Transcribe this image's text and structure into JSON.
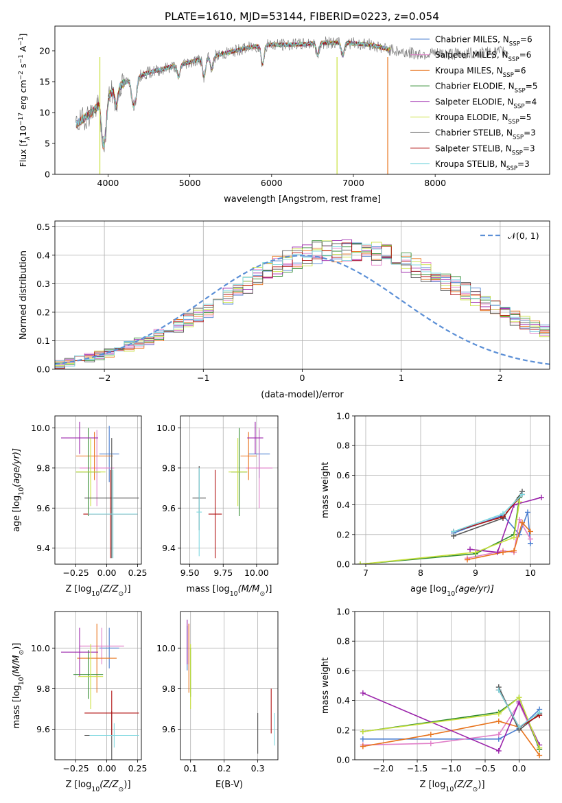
{
  "title": "PLATE=1610, MJD=53144, FIBERID=0223, z=0.054",
  "colors": {
    "chabrier_miles": "#4a7fd0",
    "salpeter_miles": "#e07ec8",
    "kroupa_miles": "#e8731c",
    "chabrier_elodie": "#2f8a2f",
    "salpeter_elodie": "#9a22aa",
    "kroupa_elodie": "#c8e03c",
    "chabrier_stelib": "#555555",
    "salpeter_stelib": "#b01010",
    "kroupa_stelib": "#7fd8e0",
    "normal_curve": "#5b8fd6",
    "grid": "#b0b0b0"
  },
  "chart_data": [
    {
      "id": "spectrum",
      "type": "line",
      "xlabel": "wavelength [Angstrom, rest frame]",
      "ylabel_main": "Flux [f",
      "ylabel_lambda_sub": "λ",
      "ylabel_mid": "10",
      "ylabel_exp": "−17",
      "ylabel_tail": " erg cm",
      "ylabel_exp2": "−2",
      "ylabel_tail2": " s",
      "ylabel_exp3": "−1",
      "ylabel_tail3": " A",
      "ylabel_exp4": "−1",
      "ylabel_close": "]",
      "xlim": [
        3350,
        9400
      ],
      "ylim": [
        0,
        24
      ],
      "xticks": [
        4000,
        5000,
        6000,
        7000,
        8000
      ],
      "yticks": [
        0,
        5,
        10,
        15,
        20
      ],
      "legend_position": "upper-right",
      "legend": [
        {
          "label": "Chabrier MILES, N",
          "sub": "SSP",
          "eq": "=6",
          "color": "#4a7fd0"
        },
        {
          "label": "Salpeter MILES, N",
          "sub": "SSP",
          "eq": "=6",
          "color": "#e07ec8"
        },
        {
          "label": "Kroupa MILES, N",
          "sub": "SSP",
          "eq": "=6",
          "color": "#e8731c"
        },
        {
          "label": "Chabrier ELODIE, N",
          "sub": "SSP",
          "eq": "=5",
          "color": "#2f8a2f"
        },
        {
          "label": "Salpeter ELODIE, N",
          "sub": "SSP",
          "eq": "=4",
          "color": "#9a22aa"
        },
        {
          "label": "Kroupa ELODIE, N",
          "sub": "SSP",
          "eq": "=5",
          "color": "#c8e03c"
        },
        {
          "label": "Chabrier STELIB, N",
          "sub": "SSP",
          "eq": "=3",
          "color": "#555555"
        },
        {
          "label": "Salpeter STELIB, N",
          "sub": "SSP",
          "eq": "=3",
          "color": "#b01010"
        },
        {
          "label": "Kroupa STELIB, N",
          "sub": "SSP",
          "eq": "=3",
          "color": "#7fd8e0"
        }
      ],
      "continuum_x": [
        3600,
        3800,
        3950,
        4100,
        4300,
        4500,
        4800,
        5100,
        5400,
        5700,
        6000,
        6300,
        6600,
        6900,
        7200,
        7500,
        7800,
        8100,
        8400,
        8700,
        8900
      ],
      "continuum_y": [
        8,
        10,
        12,
        14,
        15.5,
        16.5,
        17.5,
        18.5,
        19.5,
        20.5,
        21,
        21,
        21.3,
        21.3,
        21,
        20,
        19.5,
        19.5,
        19.6,
        19.7,
        20
      ],
      "absorption_features": [
        {
          "x": 3934,
          "depth": 6
        },
        {
          "x": 3968,
          "depth": 5
        },
        {
          "x": 4102,
          "depth": 3
        },
        {
          "x": 4304,
          "depth": 4
        },
        {
          "x": 4341,
          "depth": 3
        },
        {
          "x": 4861,
          "depth": 2
        },
        {
          "x": 5175,
          "depth": 3
        },
        {
          "x": 5270,
          "depth": 2
        },
        {
          "x": 5890,
          "depth": 3
        },
        {
          "x": 6563,
          "depth": 2
        },
        {
          "x": 6870,
          "depth": 2
        }
      ],
      "model_dropouts": [
        {
          "x": 3900,
          "color": "#c8e03c"
        },
        {
          "x": 6800,
          "color": "#c8e03c"
        },
        {
          "x": 7420,
          "color": "#e8731c"
        }
      ]
    },
    {
      "id": "residual-histogram",
      "type": "bar",
      "xlabel": "(data-model)/error",
      "ylabel": "Normed distribution",
      "xlim": [
        -2.5,
        2.5
      ],
      "ylim": [
        0,
        0.52
      ],
      "xticks": [
        -2,
        -1,
        0,
        1,
        2
      ],
      "xtick_labels": [
        "−2",
        "−1",
        "0",
        "1",
        "2"
      ],
      "yticks": [
        0.0,
        0.1,
        0.2,
        0.3,
        0.4,
        0.5
      ],
      "legend_position": "upper-right",
      "legend_label": "𝒩(0, 1)",
      "bin_width": 0.1,
      "bins_start": -2.5,
      "base_values": [
        0.018,
        0.025,
        0.033,
        0.042,
        0.05,
        0.058,
        0.066,
        0.078,
        0.09,
        0.105,
        0.12,
        0.136,
        0.152,
        0.17,
        0.19,
        0.21,
        0.232,
        0.255,
        0.278,
        0.3,
        0.322,
        0.343,
        0.362,
        0.378,
        0.392,
        0.402,
        0.41,
        0.414,
        0.416,
        0.415,
        0.413,
        0.41,
        0.404,
        0.396,
        0.385,
        0.372,
        0.358,
        0.343,
        0.327,
        0.31,
        0.292,
        0.273,
        0.254,
        0.235,
        0.216,
        0.198,
        0.18,
        0.163,
        0.147,
        0.132,
        0.118,
        0.105,
        0.093,
        0.082,
        0.072,
        0.063,
        0.055,
        0.048,
        0.041,
        0.035,
        0.03,
        0.026,
        0.023,
        0.02,
        0.018,
        0.016,
        0.015,
        0.014,
        0.013,
        0.012
      ],
      "series_offsets": [
        {
          "color": "#4a7fd0",
          "seed": 1
        },
        {
          "color": "#e07ec8",
          "seed": 2
        },
        {
          "color": "#e8731c",
          "seed": 3
        },
        {
          "color": "#2f8a2f",
          "seed": 4
        },
        {
          "color": "#9a22aa",
          "seed": 5
        },
        {
          "color": "#c8e03c",
          "seed": 6
        },
        {
          "color": "#555555",
          "seed": 7
        },
        {
          "color": "#b01010",
          "seed": 8
        },
        {
          "color": "#7fd8e0",
          "seed": 9
        }
      ]
    },
    {
      "id": "age-vs-Z",
      "type": "scatter",
      "xlabel": "Z [log",
      "xlabel_sub": "10",
      "xlabel_tail": "(Z/Z",
      "xlabel_sub2": "⊙",
      "xlabel_close": ")]",
      "ylabel": "age  [log",
      "ylabel_sub": "10",
      "ylabel_tail": "(age/yr)]",
      "xlim": [
        -0.42,
        0.28
      ],
      "ylim": [
        9.32,
        10.06
      ],
      "xticks": [
        -0.25,
        0.0,
        0.25
      ],
      "xtick_labels": [
        "−0.25",
        "0.00",
        "0.25"
      ],
      "yticks": [
        9.4,
        9.6,
        9.8,
        10.0
      ],
      "points": [
        {
          "x": 0.02,
          "y": 9.87,
          "xerr": 0.08,
          "yerr": 0.14,
          "color": "#4a7fd0"
        },
        {
          "x": -0.08,
          "y": 9.8,
          "xerr": 0.14,
          "yerr": 0.19,
          "color": "#e07ec8"
        },
        {
          "x": -0.1,
          "y": 9.86,
          "xerr": 0.15,
          "yerr": 0.12,
          "color": "#e8731c"
        },
        {
          "x": -0.15,
          "y": 9.78,
          "xerr": 0.1,
          "yerr": 0.22,
          "color": "#2f8a2f"
        },
        {
          "x": -0.22,
          "y": 9.95,
          "xerr": 0.15,
          "yerr": 0.08,
          "color": "#9a22aa"
        },
        {
          "x": -0.13,
          "y": 9.78,
          "xerr": 0.12,
          "yerr": 0.17,
          "color": "#c8e03c"
        },
        {
          "x": 0.04,
          "y": 9.65,
          "xerr": 0.22,
          "yerr": 0.3,
          "color": "#555555"
        },
        {
          "x": 0.03,
          "y": 9.57,
          "xerr": 0.22,
          "yerr": 0.22,
          "color": "#b01010"
        },
        {
          "x": 0.05,
          "y": 9.57,
          "xerr": 0.2,
          "yerr": 0.22,
          "color": "#7fd8e0"
        }
      ]
    },
    {
      "id": "age-vs-mass",
      "type": "scatter",
      "xlabel": "mass [log",
      "xlabel_sub": "10",
      "xlabel_tail": "(M/M",
      "xlabel_sub2": "⊙",
      "xlabel_close": ")]",
      "xlim": [
        9.43,
        10.16
      ],
      "ylim": [
        9.32,
        10.06
      ],
      "xticks": [
        9.5,
        9.75,
        10.0
      ],
      "xtick_labels": [
        "9.50",
        "9.75",
        "10.00"
      ],
      "yticks": [
        9.4,
        9.6,
        9.8,
        10.0
      ],
      "points": [
        {
          "x": 10.02,
          "y": 9.87,
          "xerr": 0.08,
          "yerr": 0.12,
          "color": "#4a7fd0"
        },
        {
          "x": 10.02,
          "y": 9.8,
          "xerr": 0.1,
          "yerr": 0.2,
          "color": "#e07ec8"
        },
        {
          "x": 9.94,
          "y": 9.86,
          "xerr": 0.06,
          "yerr": 0.12,
          "color": "#e8731c"
        },
        {
          "x": 9.87,
          "y": 9.78,
          "xerr": 0.06,
          "yerr": 0.22,
          "color": "#2f8a2f"
        },
        {
          "x": 9.99,
          "y": 9.95,
          "xerr": 0.06,
          "yerr": 0.08,
          "color": "#9a22aa"
        },
        {
          "x": 9.86,
          "y": 9.78,
          "xerr": 0.07,
          "yerr": 0.17,
          "color": "#c8e03c"
        },
        {
          "x": 9.57,
          "y": 9.65,
          "xerr": 0.05,
          "yerr": 0.16,
          "color": "#555555"
        },
        {
          "x": 9.69,
          "y": 9.57,
          "xerr": 0.05,
          "yerr": 0.22,
          "color": "#b01010"
        },
        {
          "x": 9.57,
          "y": 9.58,
          "xerr": 0.02,
          "yerr": 0.22,
          "color": "#7fd8e0"
        }
      ]
    },
    {
      "id": "weight-vs-age",
      "type": "line",
      "xlabel": "age  [log",
      "xlabel_sub": "10",
      "xlabel_tail": "(age/yr)]",
      "ylabel": "mass weight",
      "xlim": [
        6.8,
        10.35
      ],
      "ylim": [
        0,
        1.0
      ],
      "xticks": [
        7,
        8,
        9,
        10
      ],
      "yticks": [
        0.0,
        0.2,
        0.4,
        0.6,
        0.8,
        1.0
      ],
      "series": [
        {
          "color": "#4a7fd0",
          "x": [
            8.6,
            9.5,
            9.8,
            9.95,
            10.0
          ],
          "y": [
            0.21,
            0.33,
            0.2,
            0.35,
            0.14
          ]
        },
        {
          "color": "#e07ec8",
          "x": [
            8.85,
            9.5,
            9.7,
            9.8,
            10.0
          ],
          "y": [
            0.04,
            0.09,
            0.08,
            0.3,
            0.17
          ]
        },
        {
          "color": "#e8731c",
          "x": [
            8.85,
            9.5,
            9.7,
            9.85,
            10.0
          ],
          "y": [
            0.03,
            0.08,
            0.09,
            0.28,
            0.22
          ]
        },
        {
          "color": "#2f8a2f",
          "x": [
            6.9,
            9.0,
            9.7,
            9.8
          ],
          "y": [
            0.0,
            0.07,
            0.2,
            0.45
          ]
        },
        {
          "color": "#9a22aa",
          "x": [
            8.9,
            9.4,
            9.7,
            10.2
          ],
          "y": [
            0.1,
            0.08,
            0.4,
            0.45
          ]
        },
        {
          "color": "#c8e03c",
          "x": [
            6.9,
            9.0,
            9.7,
            9.8
          ],
          "y": [
            0.0,
            0.08,
            0.18,
            0.42
          ]
        },
        {
          "color": "#555555",
          "x": [
            8.6,
            9.5,
            9.85
          ],
          "y": [
            0.19,
            0.31,
            0.49
          ]
        },
        {
          "color": "#b01010",
          "x": [
            8.6,
            9.5,
            9.85
          ],
          "y": [
            0.22,
            0.32,
            0.47
          ]
        },
        {
          "color": "#7fd8e0",
          "x": [
            8.6,
            9.5,
            9.85
          ],
          "y": [
            0.22,
            0.34,
            0.47
          ]
        }
      ]
    },
    {
      "id": "mass-vs-Z",
      "type": "scatter",
      "xlabel": "Z [log",
      "xlabel_sub": "10",
      "xlabel_tail": "(Z/Z",
      "xlabel_sub2": "⊙",
      "xlabel_close": ")]",
      "ylabel": "mass [log",
      "ylabel_sub": "10",
      "ylabel_tail": "(M/M",
      "ylabel_sub2": "⊙",
      "ylabel_close": ")]",
      "xlim": [
        -0.42,
        0.28
      ],
      "ylim": [
        9.45,
        10.18
      ],
      "xticks": [
        -0.25,
        0.0,
        0.25
      ],
      "xtick_labels": [
        "−0.25",
        "0.00",
        "0.25"
      ],
      "yticks": [
        9.6,
        9.8,
        10.0
      ],
      "points": [
        {
          "x": 0.02,
          "y": 10.0,
          "xerr": 0.08,
          "yerr": 0.1,
          "color": "#4a7fd0"
        },
        {
          "x": -0.04,
          "y": 10.01,
          "xerr": 0.18,
          "yerr": 0.09,
          "color": "#e07ec8"
        },
        {
          "x": -0.08,
          "y": 9.95,
          "xerr": 0.16,
          "yerr": 0.17,
          "color": "#e8731c"
        },
        {
          "x": -0.15,
          "y": 9.87,
          "xerr": 0.12,
          "yerr": 0.12,
          "color": "#2f8a2f"
        },
        {
          "x": -0.22,
          "y": 9.98,
          "xerr": 0.15,
          "yerr": 0.12,
          "color": "#9a22aa"
        },
        {
          "x": -0.13,
          "y": 9.86,
          "xerr": 0.1,
          "yerr": 0.16,
          "color": "#c8e03c"
        },
        {
          "x": 0.04,
          "y": 9.57,
          "xerr": 0.22,
          "yerr": 0.12,
          "color": "#555555"
        },
        {
          "x": 0.04,
          "y": 9.68,
          "xerr": 0.22,
          "yerr": 0.11,
          "color": "#b01010"
        },
        {
          "x": 0.06,
          "y": 9.57,
          "xerr": 0.2,
          "yerr": 0.06,
          "color": "#7fd8e0"
        }
      ]
    },
    {
      "id": "mass-vs-ebv",
      "type": "scatter",
      "xlabel": "E(B-V)",
      "xlim": [
        0.07,
        0.36
      ],
      "ylim": [
        9.45,
        10.18
      ],
      "xticks": [
        0.1,
        0.2,
        0.3
      ],
      "xtick_labels": [
        "0.1",
        "0.2",
        "0.3"
      ],
      "yticks": [
        9.6,
        9.8,
        10.0
      ],
      "points": [
        {
          "x": 0.09,
          "y": 10.0,
          "yerr": 0.11,
          "color": "#4a7fd0"
        },
        {
          "x": 0.095,
          "y": 10.02,
          "yerr": 0.1,
          "color": "#e07ec8"
        },
        {
          "x": 0.095,
          "y": 9.95,
          "yerr": 0.17,
          "color": "#e8731c"
        },
        {
          "x": 0.1,
          "y": 9.88,
          "yerr": 0.12,
          "color": "#2f8a2f"
        },
        {
          "x": 0.09,
          "y": 10.03,
          "yerr": 0.11,
          "color": "#9a22aa"
        },
        {
          "x": 0.1,
          "y": 9.86,
          "yerr": 0.16,
          "color": "#c8e03c"
        },
        {
          "x": 0.3,
          "y": 9.58,
          "yerr": 0.1,
          "color": "#555555"
        },
        {
          "x": 0.34,
          "y": 9.69,
          "yerr": 0.11,
          "color": "#b01010"
        },
        {
          "x": 0.35,
          "y": 9.6,
          "yerr": 0.08,
          "color": "#7fd8e0"
        }
      ]
    },
    {
      "id": "weight-vs-Z",
      "type": "line",
      "xlabel": "Z [log",
      "xlabel_sub": "10",
      "xlabel_tail": "(Z/Z",
      "xlabel_sub2": "⊙",
      "xlabel_close": ")]",
      "ylabel": "mass weight",
      "xlim": [
        -2.42,
        0.45
      ],
      "ylim": [
        0,
        1.0
      ],
      "xticks": [
        -2.0,
        -1.5,
        -1.0,
        -0.5,
        0.0
      ],
      "xtick_labels": [
        "−2.0",
        "−1.5",
        "−1.0",
        "−0.5",
        "0.0"
      ],
      "yticks": [
        0.0,
        0.2,
        0.4,
        0.6,
        0.8,
        1.0
      ],
      "series": [
        {
          "color": "#4a7fd0",
          "x": [
            -2.3,
            -0.3,
            0.0,
            0.3
          ],
          "y": [
            0.14,
            0.14,
            0.21,
            0.34
          ]
        },
        {
          "color": "#e07ec8",
          "x": [
            -2.3,
            -1.3,
            -0.3,
            0.0,
            0.3
          ],
          "y": [
            0.1,
            0.11,
            0.17,
            0.38,
            0.08
          ]
        },
        {
          "color": "#e8731c",
          "x": [
            -2.3,
            -1.3,
            -0.3,
            0.0,
            0.3
          ],
          "y": [
            0.09,
            0.17,
            0.26,
            0.22,
            0.03
          ]
        },
        {
          "color": "#2f8a2f",
          "x": [
            -2.3,
            -0.3,
            0.0,
            0.3
          ],
          "y": [
            0.19,
            0.32,
            0.42,
            0.07
          ]
        },
        {
          "color": "#9a22aa",
          "x": [
            -2.3,
            -0.3,
            0.0,
            0.3
          ],
          "y": [
            0.45,
            0.06,
            0.39,
            0.1
          ]
        },
        {
          "color": "#c8e03c",
          "x": [
            -2.3,
            -0.3,
            0.0,
            0.3
          ],
          "y": [
            0.19,
            0.31,
            0.42,
            0.08
          ]
        },
        {
          "color": "#555555",
          "x": [
            -0.3,
            0.0,
            0.3
          ],
          "y": [
            0.49,
            0.2,
            0.31
          ]
        },
        {
          "color": "#b01010",
          "x": [
            -0.3,
            0.0,
            0.3
          ],
          "y": [
            0.47,
            0.22,
            0.3
          ]
        },
        {
          "color": "#7fd8e0",
          "x": [
            -0.3,
            0.0,
            0.3
          ],
          "y": [
            0.47,
            0.22,
            0.32
          ]
        }
      ]
    }
  ]
}
